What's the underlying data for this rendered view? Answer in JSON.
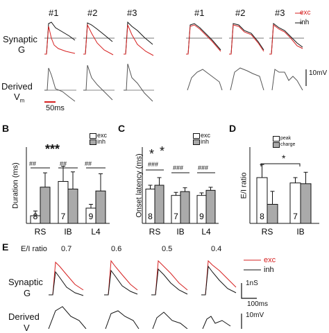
{
  "panelA": {
    "left_headers": [
      "#1",
      "#2",
      "#3"
    ],
    "right_headers": [
      "#1",
      "#2",
      "#3"
    ],
    "row1_label_line1": "Synaptic",
    "row1_label_line2": "G",
    "row2_label_line1": "Derived",
    "row2_label_line2": "V",
    "row2_label_sub": "m",
    "time_scale": "50ms",
    "v_scale": "10mV",
    "legend": {
      "exc": "exc",
      "inh": "inh"
    }
  },
  "panelB": {
    "letter": "B",
    "ylabel": "Duration (ms)",
    "legend": [
      "exc",
      "inh"
    ],
    "sig_hash": "##",
    "sig_star": "***",
    "categories": [
      "RS",
      "IB",
      "L4"
    ],
    "n_labels": [
      "8",
      "7",
      "9"
    ]
  },
  "panelC": {
    "letter": "C",
    "ylabel": "Onset latency (ms)",
    "legend": [
      "exc",
      "inh"
    ],
    "sig_hash": "###",
    "sig_star": "*",
    "categories": [
      "RS",
      "IB",
      "L4"
    ],
    "n_labels": [
      "8",
      "7",
      "9"
    ]
  },
  "panelD": {
    "letter": "D",
    "ylabel": "E/I ratio",
    "legend": [
      "peak",
      "charge"
    ],
    "sig_star": "*",
    "categories": [
      "RS",
      "IB"
    ],
    "n_labels": [
      "8",
      "7"
    ]
  },
  "panelE": {
    "letter": "E",
    "ratio_label": "E/I ratio",
    "ratios": [
      "0.7",
      "0.6",
      "0.5",
      "0.4"
    ],
    "legend": {
      "exc": "exc",
      "inh": "inh"
    },
    "row1_label_line1": "Synaptic",
    "row1_label_line2": "G",
    "row2_label_line1": "Derived",
    "row2_label_line2": "V",
    "g_scale": "1nS",
    "t_scale": "100ms",
    "v_scale": "10mV"
  },
  "chart_data": [
    {
      "type": "bar",
      "panel": "B",
      "categories": [
        "RS",
        "IB",
        "L4"
      ],
      "series": [
        {
          "name": "exc",
          "values": [
            8,
            44,
            16
          ],
          "err": [
            5,
            16,
            4
          ]
        },
        {
          "name": "inh",
          "values": [
            38,
            36,
            34
          ],
          "err": [
            15,
            18,
            18
          ]
        }
      ],
      "ylabel": "Duration (ms)",
      "ylim": [
        0,
        80
      ]
    },
    {
      "type": "bar",
      "panel": "C",
      "categories": [
        "RS",
        "IB",
        "L4"
      ],
      "series": [
        {
          "name": "exc",
          "values": [
            13.5,
            11,
            11
          ],
          "err": [
            1.5,
            1.2,
            1
          ]
        },
        {
          "name": "inh",
          "values": [
            15,
            12.5,
            13
          ],
          "err": [
            3,
            1.5,
            1.2
          ]
        }
      ],
      "ylabel": "Onset latency (ms)",
      "ylim": [
        0,
        30
      ]
    },
    {
      "type": "bar",
      "panel": "D",
      "categories": [
        "RS",
        "IB"
      ],
      "series": [
        {
          "name": "peak",
          "values": [
            0.6,
            0.53
          ],
          "err": [
            0.17,
            0.07
          ]
        },
        {
          "name": "charge",
          "values": [
            0.25,
            0.52
          ],
          "err": [
            0.17,
            0.15
          ]
        }
      ],
      "ylabel": "E/I ratio",
      "ylim": [
        0,
        1.0
      ]
    }
  ]
}
